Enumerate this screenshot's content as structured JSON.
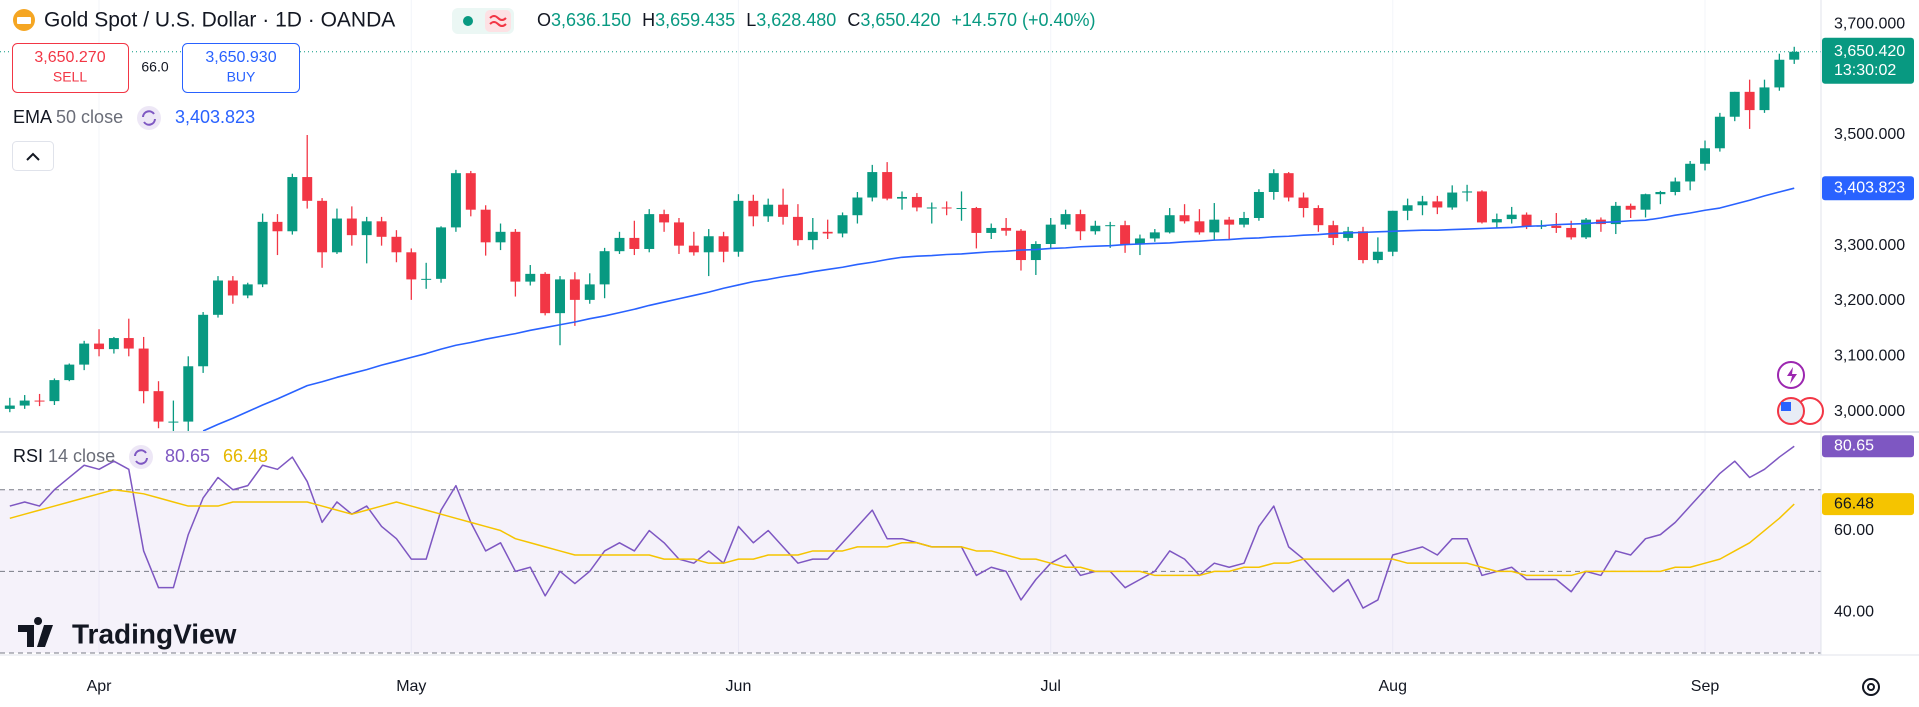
{
  "trade": {
    "sell_price": "3,650.270",
    "sell": "SELL",
    "spread": "66.0",
    "buy_price": "3,650.930",
    "buy": "BUY"
  },
  "branding": "TradingView",
  "chart_data": [
    {
      "type": "candlestick",
      "title": "Gold Spot / U.S. Dollar · 1D · OANDA",
      "ohlc": [
        {
          "label": "O",
          "value": "3,636.150"
        },
        {
          "label": "H",
          "value": "3,659.435"
        },
        {
          "label": "L",
          "value": "3,628.480"
        },
        {
          "label": "C",
          "value": "3,650.420"
        }
      ],
      "change": "+14.570 (+0.40%)",
      "up_color": "#089981",
      "down_color": "#f23645",
      "last_price_label": "3,650.420",
      "countdown": "13:30:02",
      "candles": [
        [
          3005,
          3025,
          2999,
          3011
        ],
        [
          3011,
          3030,
          3005,
          3020
        ],
        [
          3020,
          3032,
          3010,
          3019
        ],
        [
          3019,
          3060,
          3012,
          3057
        ],
        [
          3057,
          3087,
          3055,
          3085
        ],
        [
          3085,
          3128,
          3075,
          3123
        ],
        [
          3123,
          3149,
          3100,
          3113
        ],
        [
          3113,
          3135,
          3105,
          3133
        ],
        [
          3133,
          3168,
          3100,
          3114
        ],
        [
          3114,
          3135,
          3015,
          3037
        ],
        [
          3037,
          3055,
          2970,
          2982
        ],
        [
          2982,
          3020,
          2960,
          2982
        ],
        [
          2982,
          3100,
          2957,
          3082
        ],
        [
          3082,
          3180,
          3070,
          3175
        ],
        [
          3175,
          3245,
          3170,
          3237
        ],
        [
          3237,
          3245,
          3195,
          3210
        ],
        [
          3210,
          3233,
          3205,
          3230
        ],
        [
          3230,
          3358,
          3225,
          3343
        ],
        [
          3343,
          3357,
          3283,
          3326
        ],
        [
          3326,
          3430,
          3320,
          3424
        ],
        [
          3424,
          3500,
          3367,
          3381
        ],
        [
          3381,
          3386,
          3260,
          3288
        ],
        [
          3288,
          3367,
          3285,
          3349
        ],
        [
          3349,
          3371,
          3300,
          3319
        ],
        [
          3319,
          3352,
          3268,
          3344
        ],
        [
          3344,
          3352,
          3300,
          3316
        ],
        [
          3316,
          3328,
          3270,
          3288
        ],
        [
          3288,
          3295,
          3202,
          3239
        ],
        [
          3239,
          3269,
          3222,
          3240
        ],
        [
          3240,
          3335,
          3233,
          3333
        ],
        [
          3333,
          3437,
          3325,
          3431
        ],
        [
          3431,
          3435,
          3353,
          3365
        ],
        [
          3365,
          3373,
          3282,
          3306
        ],
        [
          3306,
          3340,
          3292,
          3325
        ],
        [
          3325,
          3330,
          3208,
          3235
        ],
        [
          3235,
          3265,
          3228,
          3249
        ],
        [
          3249,
          3252,
          3174,
          3178
        ],
        [
          3178,
          3245,
          3120,
          3239
        ],
        [
          3239,
          3252,
          3155,
          3202
        ],
        [
          3202,
          3250,
          3195,
          3230
        ],
        [
          3230,
          3296,
          3205,
          3290
        ],
        [
          3290,
          3325,
          3285,
          3314
        ],
        [
          3314,
          3345,
          3283,
          3294
        ],
        [
          3294,
          3366,
          3288,
          3357
        ],
        [
          3357,
          3365,
          3325,
          3342
        ],
        [
          3342,
          3350,
          3285,
          3300
        ],
        [
          3300,
          3325,
          3282,
          3288
        ],
        [
          3288,
          3330,
          3245,
          3317
        ],
        [
          3317,
          3325,
          3270,
          3289
        ],
        [
          3289,
          3393,
          3280,
          3381
        ],
        [
          3381,
          3392,
          3335,
          3353
        ],
        [
          3353,
          3385,
          3343,
          3374
        ],
        [
          3374,
          3403,
          3338,
          3352
        ],
        [
          3352,
          3375,
          3300,
          3310
        ],
        [
          3310,
          3350,
          3293,
          3325
        ],
        [
          3325,
          3347,
          3312,
          3322
        ],
        [
          3322,
          3360,
          3315,
          3355
        ],
        [
          3355,
          3397,
          3340,
          3387
        ],
        [
          3387,
          3446,
          3380,
          3433
        ],
        [
          3433,
          3451,
          3382,
          3385
        ],
        [
          3385,
          3398,
          3365,
          3388
        ],
        [
          3388,
          3395,
          3362,
          3369
        ],
        [
          3369,
          3378,
          3340,
          3369
        ],
        [
          3369,
          3380,
          3355,
          3368
        ],
        [
          3368,
          3398,
          3345,
          3368
        ],
        [
          3368,
          3370,
          3295,
          3323
        ],
        [
          3323,
          3340,
          3312,
          3332
        ],
        [
          3332,
          3350,
          3318,
          3327
        ],
        [
          3327,
          3330,
          3255,
          3274
        ],
        [
          3274,
          3308,
          3247,
          3303
        ],
        [
          3303,
          3350,
          3295,
          3338
        ],
        [
          3338,
          3365,
          3330,
          3357
        ],
        [
          3357,
          3365,
          3310,
          3326
        ],
        [
          3326,
          3345,
          3320,
          3336
        ],
        [
          3336,
          3343,
          3296,
          3337
        ],
        [
          3337,
          3345,
          3287,
          3302
        ],
        [
          3302,
          3320,
          3283,
          3313
        ],
        [
          3313,
          3330,
          3307,
          3324
        ],
        [
          3324,
          3368,
          3322,
          3355
        ],
        [
          3355,
          3375,
          3340,
          3344
        ],
        [
          3344,
          3366,
          3320,
          3324
        ],
        [
          3324,
          3377,
          3310,
          3347
        ],
        [
          3347,
          3352,
          3310,
          3338
        ],
        [
          3338,
          3361,
          3333,
          3350
        ],
        [
          3350,
          3402,
          3345,
          3397
        ],
        [
          3397,
          3438,
          3383,
          3431
        ],
        [
          3431,
          3433,
          3380,
          3387
        ],
        [
          3387,
          3396,
          3351,
          3368
        ],
        [
          3368,
          3373,
          3325,
          3337
        ],
        [
          3337,
          3345,
          3301,
          3314
        ],
        [
          3314,
          3334,
          3308,
          3326
        ],
        [
          3326,
          3334,
          3268,
          3274
        ],
        [
          3274,
          3315,
          3268,
          3289
        ],
        [
          3289,
          3363,
          3281,
          3363
        ],
        [
          3363,
          3385,
          3346,
          3373
        ],
        [
          3373,
          3390,
          3355,
          3380
        ],
        [
          3380,
          3390,
          3357,
          3369
        ],
        [
          3369,
          3409,
          3365,
          3396
        ],
        [
          3396,
          3410,
          3380,
          3398
        ],
        [
          3398,
          3400,
          3340,
          3342
        ],
        [
          3342,
          3358,
          3331,
          3348
        ],
        [
          3348,
          3370,
          3340,
          3356
        ],
        [
          3356,
          3360,
          3330,
          3335
        ],
        [
          3335,
          3346,
          3330,
          3336
        ],
        [
          3336,
          3359,
          3323,
          3332
        ],
        [
          3332,
          3345,
          3311,
          3315
        ],
        [
          3315,
          3350,
          3312,
          3347
        ],
        [
          3347,
          3351,
          3325,
          3339
        ],
        [
          3339,
          3379,
          3321,
          3372
        ],
        [
          3372,
          3376,
          3350,
          3365
        ],
        [
          3365,
          3394,
          3351,
          3393
        ],
        [
          3393,
          3399,
          3375,
          3397
        ],
        [
          3397,
          3423,
          3391,
          3416
        ],
        [
          3416,
          3453,
          3400,
          3448
        ],
        [
          3448,
          3490,
          3436,
          3476
        ],
        [
          3476,
          3540,
          3470,
          3533
        ],
        [
          3533,
          3578,
          3525,
          3578
        ],
        [
          3578,
          3600,
          3511,
          3545
        ],
        [
          3545,
          3600,
          3540,
          3586
        ],
        [
          3586,
          3647,
          3580,
          3636
        ],
        [
          3636.15,
          3659.435,
          3628.48,
          3650.42
        ]
      ],
      "ema": {
        "name": "EMA",
        "params": "50 close",
        "color": "#2962ff",
        "value_label": "3,403.823",
        "values": [
          null,
          null,
          null,
          null,
          null,
          null,
          null,
          null,
          null,
          null,
          null,
          null,
          null,
          2965,
          2977,
          2988,
          3000,
          3012,
          3023,
          3035,
          3047,
          3054,
          3062,
          3069,
          3076,
          3084,
          3091,
          3098,
          3105,
          3113,
          3120,
          3125,
          3131,
          3136,
          3141,
          3147,
          3152,
          3157,
          3162,
          3168,
          3173,
          3179,
          3185,
          3192,
          3198,
          3204,
          3210,
          3216,
          3223,
          3229,
          3235,
          3239,
          3244,
          3248,
          3253,
          3257,
          3261,
          3266,
          3270,
          3275,
          3279,
          3281,
          3282,
          3284,
          3285,
          3287,
          3289,
          3290,
          3292,
          3293,
          3295,
          3296,
          3298,
          3299,
          3300,
          3302,
          3303,
          3304,
          3305,
          3307,
          3308,
          3310,
          3311,
          3313,
          3314,
          3316,
          3317,
          3319,
          3320,
          3322,
          3323,
          3324,
          3325,
          3326,
          3327,
          3328,
          3328,
          3329,
          3330,
          3331,
          3332,
          3333,
          3335,
          3336,
          3338,
          3339,
          3340,
          3342,
          3343,
          3345,
          3346,
          3350,
          3355,
          3359,
          3364,
          3368,
          3375,
          3382,
          3390,
          3397,
          3403.823
        ]
      },
      "xlim": [
        -0.66,
        121.8
      ],
      "xticks": [
        {
          "value": 6,
          "label": "Apr"
        },
        {
          "value": 27,
          "label": "May"
        },
        {
          "value": 49,
          "label": "Jun"
        },
        {
          "value": 70,
          "label": "Jul"
        },
        {
          "value": 93,
          "label": "Aug"
        },
        {
          "value": 114,
          "label": "Sep"
        }
      ],
      "ylim": [
        2965,
        3744
      ],
      "yticks": [
        {
          "value": 3000,
          "label": "3,000.000"
        },
        {
          "value": 3100,
          "label": "3,100.000"
        },
        {
          "value": 3200,
          "label": "3,200.000"
        },
        {
          "value": 3300,
          "label": "3,300.000"
        },
        {
          "value": 3500,
          "label": "3,500.000"
        },
        {
          "value": 3700,
          "label": "3,700.000"
        }
      ],
      "grid": true
    },
    {
      "type": "line",
      "title": "RSI",
      "params": "14 close",
      "series": [
        {
          "color": "#7e57c2",
          "value_label": "80.65",
          "values": [
            66,
            67,
            66,
            70,
            73,
            76,
            75,
            77,
            75,
            55,
            46,
            46,
            59,
            68,
            73,
            70,
            71,
            76,
            75,
            78,
            72,
            62,
            67,
            64,
            66,
            61,
            58,
            53,
            53,
            65,
            71,
            62,
            55,
            57,
            50,
            51,
            44,
            50,
            47,
            50,
            55,
            57,
            55,
            60,
            57,
            53,
            52,
            55,
            52,
            61,
            57,
            60,
            56,
            52,
            53,
            53,
            57,
            61,
            65,
            58,
            58,
            57,
            56,
            56,
            56,
            49,
            51,
            50,
            43,
            48,
            52,
            54,
            49,
            50,
            50,
            46,
            48,
            50,
            55,
            53,
            49,
            52,
            51,
            52,
            61,
            66,
            56,
            53,
            49,
            45,
            48,
            41,
            43,
            54,
            55,
            56,
            54,
            58,
            58,
            49,
            50,
            51,
            48,
            48,
            48,
            45,
            50,
            49,
            55,
            54,
            58,
            59,
            62,
            66,
            70,
            74,
            77,
            73,
            75,
            78,
            80.65
          ]
        },
        {
          "color": "#f5c400",
          "value_label": "66.48",
          "values": [
            63,
            64,
            65,
            66,
            67,
            68,
            69,
            70,
            69.5,
            69,
            68,
            67,
            66,
            66,
            66,
            67,
            67,
            67,
            67,
            67,
            67,
            66,
            65,
            64,
            65,
            66,
            67,
            66,
            65,
            64,
            63,
            62,
            61,
            60,
            58,
            57,
            56,
            55,
            54,
            54,
            54,
            54,
            54,
            54,
            53,
            53,
            53,
            52,
            52,
            53,
            53,
            54,
            54,
            54,
            55,
            55,
            55,
            56,
            56,
            56,
            57,
            57,
            56,
            56,
            56,
            55,
            55,
            54,
            53,
            53,
            52,
            51,
            51,
            50,
            50,
            50,
            50,
            49,
            49,
            49,
            49,
            50,
            50,
            51,
            51,
            52,
            52,
            53,
            53,
            53,
            53,
            53,
            53,
            53,
            52,
            52,
            52,
            52,
            52,
            51,
            50,
            50,
            49,
            49,
            49,
            49,
            50,
            50,
            50,
            50,
            50,
            50,
            51,
            51,
            52,
            53,
            55,
            57,
            60,
            63,
            66.48
          ]
        }
      ],
      "bands": [
        70,
        50,
        30
      ],
      "band_color": "#7e57c2",
      "xlim": [
        -0.66,
        121.8
      ],
      "ylim": [
        29.5,
        83.9
      ],
      "yticks": [
        {
          "value": 40,
          "label": "40.00"
        },
        {
          "value": 60,
          "label": "60.00"
        }
      ]
    }
  ]
}
